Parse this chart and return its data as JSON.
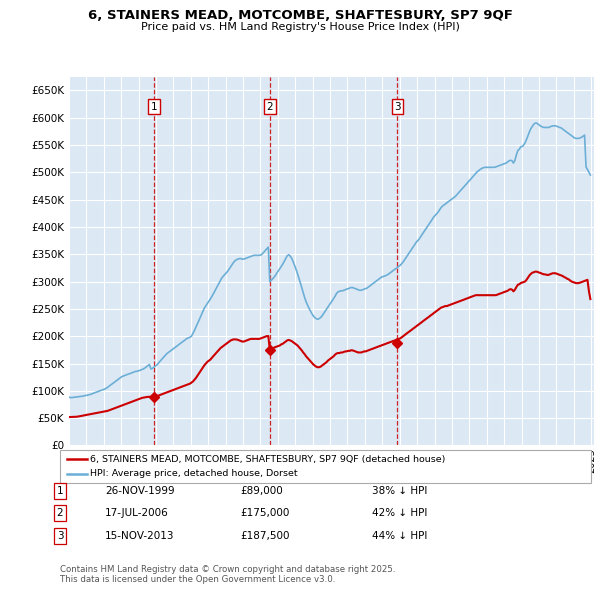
{
  "title": "6, STAINERS MEAD, MOTCOMBE, SHAFTESBURY, SP7 9QF",
  "subtitle": "Price paid vs. HM Land Registry's House Price Index (HPI)",
  "plot_bg_color": "#dce9f5",
  "grid_color": "#ffffff",
  "ylim": [
    0,
    675000
  ],
  "yticks": [
    0,
    50000,
    100000,
    150000,
    200000,
    250000,
    300000,
    350000,
    400000,
    450000,
    500000,
    550000,
    600000,
    650000
  ],
  "ytick_labels": [
    "£0",
    "£50K",
    "£100K",
    "£150K",
    "£200K",
    "£250K",
    "£300K",
    "£350K",
    "£400K",
    "£450K",
    "£500K",
    "£550K",
    "£600K",
    "£650K"
  ],
  "hpi_color": "#6baed6",
  "price_color": "#cc0000",
  "transactions": [
    {
      "num": 1,
      "date": "1999-11-26",
      "price": 89000,
      "label": "26-NOV-1999",
      "price_str": "£89,000",
      "hpi_str": "38% ↓ HPI"
    },
    {
      "num": 2,
      "date": "2006-07-17",
      "price": 175000,
      "label": "17-JUL-2006",
      "price_str": "£175,000",
      "hpi_str": "42% ↓ HPI"
    },
    {
      "num": 3,
      "date": "2013-11-15",
      "price": 187500,
      "label": "15-NOV-2013",
      "price_str": "£187,500",
      "hpi_str": "44% ↓ HPI"
    }
  ],
  "legend_label_price": "6, STAINERS MEAD, MOTCOMBE, SHAFTESBURY, SP7 9QF (detached house)",
  "legend_label_hpi": "HPI: Average price, detached house, Dorset",
  "footer": "Contains HM Land Registry data © Crown copyright and database right 2025.\nThis data is licensed under the Open Government Licence v3.0.",
  "hpi_data_monthly": [
    88000,
    87500,
    87800,
    88000,
    88300,
    88800,
    89000,
    89300,
    89800,
    90200,
    90800,
    91200,
    92000,
    92500,
    93200,
    94000,
    95100,
    96200,
    97100,
    98000,
    99100,
    100200,
    101100,
    102000,
    103000,
    104500,
    106000,
    108000,
    110200,
    112100,
    114000,
    116100,
    118200,
    120000,
    122100,
    124000,
    126000,
    127200,
    128100,
    129000,
    130200,
    131100,
    132000,
    133100,
    134000,
    135200,
    135800,
    136100,
    137000,
    138100,
    139200,
    140100,
    142000,
    144100,
    146000,
    148200,
    140000,
    141000,
    143000,
    145200,
    147000,
    150000,
    153200,
    156100,
    159000,
    162100,
    165000,
    168100,
    170200,
    172000,
    174100,
    176000,
    178000,
    180100,
    182000,
    184100,
    186000,
    188100,
    190000,
    192100,
    194000,
    196100,
    197200,
    198100,
    200000,
    205200,
    210100,
    216000,
    222100,
    228000,
    234200,
    240100,
    246000,
    252100,
    256000,
    260200,
    264000,
    268100,
    272200,
    277000,
    282100,
    287000,
    292100,
    297000,
    302100,
    307000,
    310200,
    313100,
    316000,
    319200,
    323100,
    327000,
    331200,
    335100,
    338000,
    340100,
    341000,
    342100,
    342000,
    341200,
    341000,
    342100,
    343000,
    344100,
    345000,
    346100,
    347000,
    348100,
    348000,
    348100,
    348000,
    348100,
    349000,
    351200,
    354100,
    357000,
    360200,
    363100,
    300000,
    302100,
    305000,
    308100,
    312000,
    316200,
    320000,
    324100,
    328000,
    332100,
    337000,
    342100,
    347000,
    349100,
    347000,
    343100,
    337000,
    330200,
    323000,
    315100,
    307000,
    298100,
    289000,
    280100,
    271000,
    263100,
    257000,
    251100,
    246000,
    241200,
    237000,
    234100,
    232000,
    231100,
    232000,
    234100,
    237000,
    241000,
    245100,
    249000,
    253100,
    257000,
    261000,
    265100,
    269000,
    273100,
    278000,
    281100,
    282000,
    283100,
    283000,
    284100,
    285000,
    286200,
    287000,
    288100,
    289000,
    289100,
    288000,
    287100,
    286000,
    285100,
    284000,
    284100,
    285000,
    286100,
    287000,
    288100,
    290000,
    292100,
    294000,
    296100,
    298000,
    300100,
    302000,
    304100,
    306000,
    308200,
    309000,
    310100,
    311000,
    312100,
    314000,
    316100,
    318000,
    320100,
    322000,
    324100,
    326000,
    328200,
    330000,
    333100,
    336000,
    340100,
    344000,
    348100,
    352000,
    356100,
    360000,
    364100,
    368000,
    372200,
    375000,
    378100,
    382000,
    386100,
    390000,
    394100,
    398000,
    402100,
    406000,
    410100,
    414000,
    418200,
    421000,
    424100,
    427000,
    431100,
    435000,
    438100,
    440000,
    442100,
    444000,
    446100,
    448000,
    450200,
    452000,
    454100,
    456000,
    459100,
    462000,
    465100,
    468000,
    471100,
    474000,
    477100,
    480000,
    483200,
    486000,
    489100,
    492000,
    495100,
    498000,
    501100,
    503000,
    505100,
    507000,
    508100,
    509000,
    509200,
    509000,
    509100,
    509000,
    509100,
    509000,
    509100,
    510000,
    511100,
    512000,
    513100,
    514000,
    515200,
    516000,
    517100,
    519000,
    521100,
    522000,
    521100,
    517000,
    522000,
    532100,
    540000,
    542100,
    547000,
    547000,
    550100,
    554000,
    560100,
    567000,
    574100,
    580000,
    584100,
    588000,
    590100,
    590000,
    588200,
    586000,
    584100,
    583000,
    582100,
    582000,
    582100,
    582000,
    583100,
    584000,
    585100,
    585000,
    585200,
    584000,
    583100,
    582000,
    581100,
    579000,
    577100,
    575000,
    573100,
    571000,
    569100,
    567000,
    565200,
    563000,
    562100,
    562000,
    562100,
    563000,
    564100,
    566000,
    568100,
    510000,
    505000,
    500000,
    495000
  ],
  "price_data_monthly": [
    52000,
    52100,
    52200,
    52300,
    52400,
    52600,
    53000,
    53500,
    54000,
    54600,
    55100,
    55600,
    56100,
    56600,
    57100,
    57600,
    58100,
    58600,
    59100,
    59600,
    60100,
    60600,
    61100,
    61600,
    62100,
    62600,
    63200,
    64100,
    65100,
    66100,
    67100,
    68100,
    69100,
    70100,
    71100,
    72100,
    73100,
    74100,
    75100,
    76100,
    77100,
    78100,
    79100,
    80100,
    81100,
    82100,
    83100,
    84100,
    85100,
    86100,
    87100,
    87600,
    88100,
    88600,
    89000,
    89000,
    89000,
    89000,
    89000,
    89500,
    90000,
    91100,
    92200,
    93100,
    94100,
    95100,
    96100,
    97100,
    98100,
    99100,
    100100,
    101200,
    102200,
    103200,
    104200,
    105200,
    106200,
    107200,
    108200,
    109200,
    110200,
    111200,
    112200,
    113200,
    115200,
    117200,
    120200,
    123200,
    127200,
    131200,
    135200,
    139200,
    143200,
    147200,
    150200,
    153200,
    155200,
    157200,
    160200,
    163200,
    166200,
    169200,
    172200,
    175200,
    178200,
    180200,
    182200,
    184200,
    186200,
    188200,
    190200,
    192200,
    193200,
    194200,
    194100,
    194000,
    193200,
    192200,
    191200,
    190200,
    190200,
    191200,
    192200,
    193200,
    194200,
    195200,
    195100,
    195000,
    195200,
    195100,
    195000,
    195200,
    196200,
    197200,
    198200,
    199200,
    200200,
    200200,
    175200,
    176200,
    178200,
    179200,
    180200,
    181200,
    182200,
    183200,
    185200,
    186200,
    188200,
    190200,
    192200,
    193200,
    192200,
    191200,
    189200,
    187200,
    185200,
    183200,
    180200,
    177200,
    174200,
    170200,
    167200,
    163200,
    160200,
    157200,
    154200,
    151200,
    148200,
    146200,
    144200,
    143200,
    143200,
    144200,
    146200,
    148200,
    150200,
    152200,
    155200,
    157200,
    159200,
    161200,
    163200,
    166200,
    168200,
    169200,
    169100,
    170200,
    170100,
    171200,
    172100,
    172200,
    173200,
    173100,
    174200,
    174100,
    173200,
    172200,
    171100,
    170200,
    170100,
    170200,
    171100,
    172200,
    172100,
    173200,
    174100,
    175200,
    176100,
    177200,
    178100,
    179200,
    180100,
    181200,
    182100,
    183200,
    184100,
    185200,
    186100,
    187200,
    188100,
    189200,
    190100,
    191200,
    192100,
    193200,
    194100,
    195200,
    196100,
    198200,
    200100,
    202200,
    204100,
    206200,
    208100,
    210200,
    212100,
    214200,
    216100,
    218200,
    220100,
    222200,
    224100,
    226200,
    228100,
    230200,
    232100,
    234200,
    236100,
    238200,
    240100,
    242200,
    244100,
    246200,
    248100,
    250200,
    252100,
    253200,
    254100,
    255200,
    255100,
    256200,
    257100,
    258200,
    259100,
    260200,
    261100,
    262200,
    263100,
    264200,
    265100,
    266200,
    267100,
    268200,
    269100,
    270200,
    271100,
    272200,
    273100,
    274200,
    275100,
    275200,
    275100,
    275000,
    275100,
    275000,
    275100,
    275000,
    275100,
    275000,
    275100,
    275000,
    275100,
    275000,
    275100,
    276200,
    277100,
    278200,
    279100,
    280200,
    281100,
    282200,
    283100,
    285200,
    286100,
    285200,
    282100,
    285200,
    290100,
    294200,
    295100,
    297200,
    298100,
    299200,
    300100,
    303200,
    307100,
    311200,
    314100,
    316200,
    317100,
    318200,
    318100,
    317200,
    316100,
    315200,
    314100,
    313200,
    313100,
    312200,
    312100,
    313200,
    314100,
    315200,
    315100,
    315200,
    314100,
    313200,
    312100,
    311200,
    310100,
    308200,
    307100,
    305200,
    304100,
    302200,
    300100,
    299200,
    298100,
    297200,
    297100,
    297200,
    298100,
    299200,
    300100,
    301200,
    302100,
    303200,
    282100,
    268000
  ]
}
